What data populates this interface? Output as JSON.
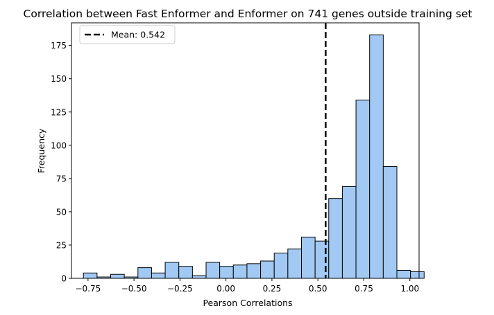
{
  "chart_data": {
    "type": "histogram",
    "title": "Correlation between Fast Enformer and Enformer on 741 genes outside training set",
    "xlabel": "Pearson Correlations",
    "ylabel": "Frequency",
    "xlim": [
      -0.84,
      1.05
    ],
    "ylim": [
      0,
      192
    ],
    "xticks": [
      -0.75,
      -0.5,
      -0.25,
      0.0,
      0.25,
      0.5,
      0.75,
      1.0
    ],
    "xtick_labels": [
      "−0.75",
      "−0.50",
      "−0.25",
      "0.00",
      "0.25",
      "0.50",
      "0.75",
      "1.00"
    ],
    "yticks": [
      0,
      25,
      50,
      75,
      100,
      125,
      150,
      175
    ],
    "ytick_labels": [
      "0",
      "25",
      "50",
      "75",
      "100",
      "125",
      "150",
      "175"
    ],
    "bins": {
      "start": -0.775,
      "width": 0.0741,
      "counts": [
        4,
        1,
        3,
        1,
        8,
        4,
        12,
        9,
        2,
        12,
        9,
        10,
        11,
        13,
        19,
        22,
        31,
        28,
        60,
        69,
        134,
        183,
        84,
        6,
        5
      ]
    },
    "bar_color": "#a1c9f4",
    "edge_color": "#000000",
    "mean_line": {
      "value": 0.542,
      "label": "Mean: 0.542",
      "color": "#000000",
      "style": "dashed"
    },
    "legend_position": "upper-left",
    "grid": false
  }
}
